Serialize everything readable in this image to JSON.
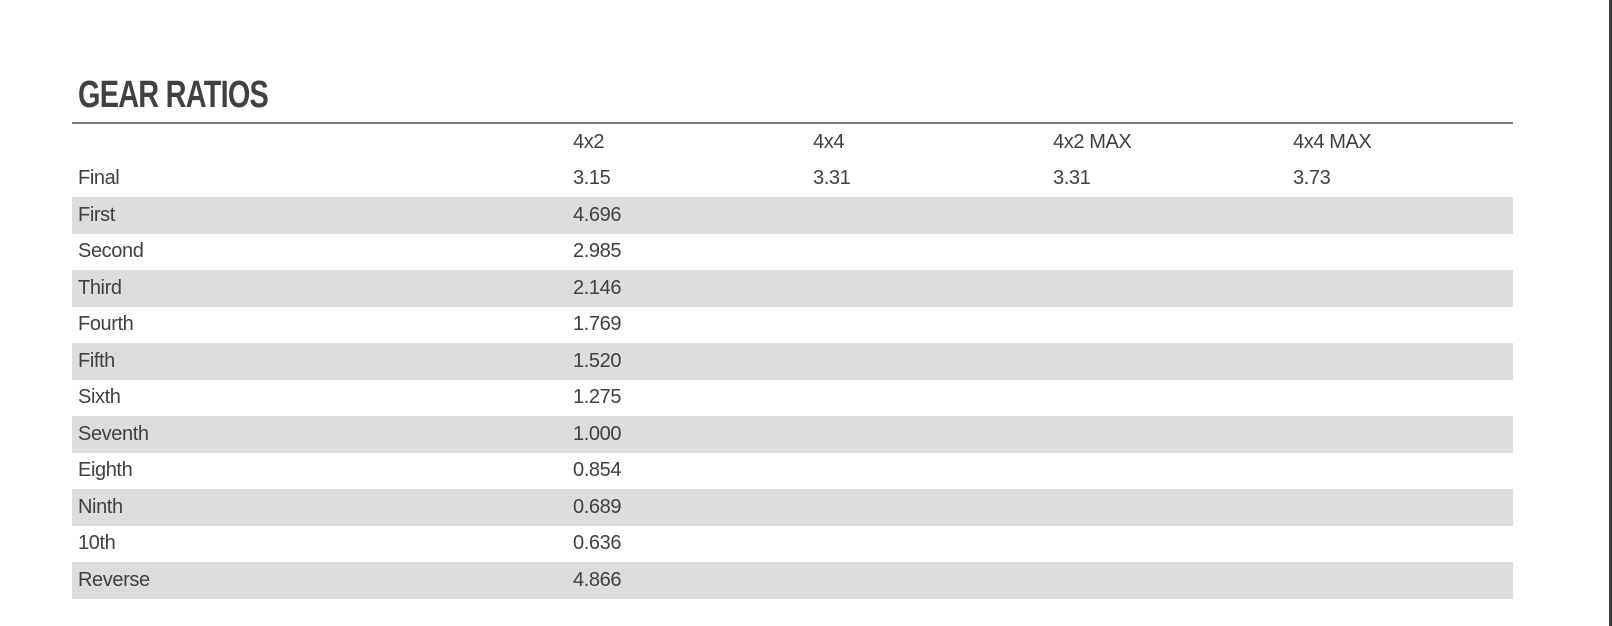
{
  "title": "GEAR RATIOS",
  "table": {
    "column_headers": [
      "4x2",
      "4x4",
      "4x2 MAX",
      "4x4 MAX"
    ],
    "rows": [
      {
        "label": "Final",
        "values": [
          "3.15",
          "3.31",
          "3.31",
          "3.73"
        ]
      },
      {
        "label": "First",
        "values": [
          "4.696",
          "",
          "",
          ""
        ]
      },
      {
        "label": "Second",
        "values": [
          "2.985",
          "",
          "",
          ""
        ]
      },
      {
        "label": "Third",
        "values": [
          "2.146",
          "",
          "",
          ""
        ]
      },
      {
        "label": "Fourth",
        "values": [
          "1.769",
          "",
          "",
          ""
        ]
      },
      {
        "label": "Fifth",
        "values": [
          "1.520",
          "",
          "",
          ""
        ]
      },
      {
        "label": "Sixth",
        "values": [
          "1.275",
          "",
          "",
          ""
        ]
      },
      {
        "label": "Seventh",
        "values": [
          "1.000",
          "",
          "",
          ""
        ]
      },
      {
        "label": "Eighth",
        "values": [
          "0.854",
          "",
          "",
          ""
        ]
      },
      {
        "label": "Ninth",
        "values": [
          "0.689",
          "",
          "",
          ""
        ]
      },
      {
        "label": "10th",
        "values": [
          "0.636",
          "",
          "",
          ""
        ]
      },
      {
        "label": "Reverse",
        "values": [
          "4.866",
          "",
          "",
          ""
        ]
      }
    ]
  },
  "colors": {
    "text": "#414042",
    "stripe": "#dcdddf",
    "title_rule": "#7d7d7d",
    "page_edge": "#3a3a3c",
    "background": "#ffffff"
  }
}
